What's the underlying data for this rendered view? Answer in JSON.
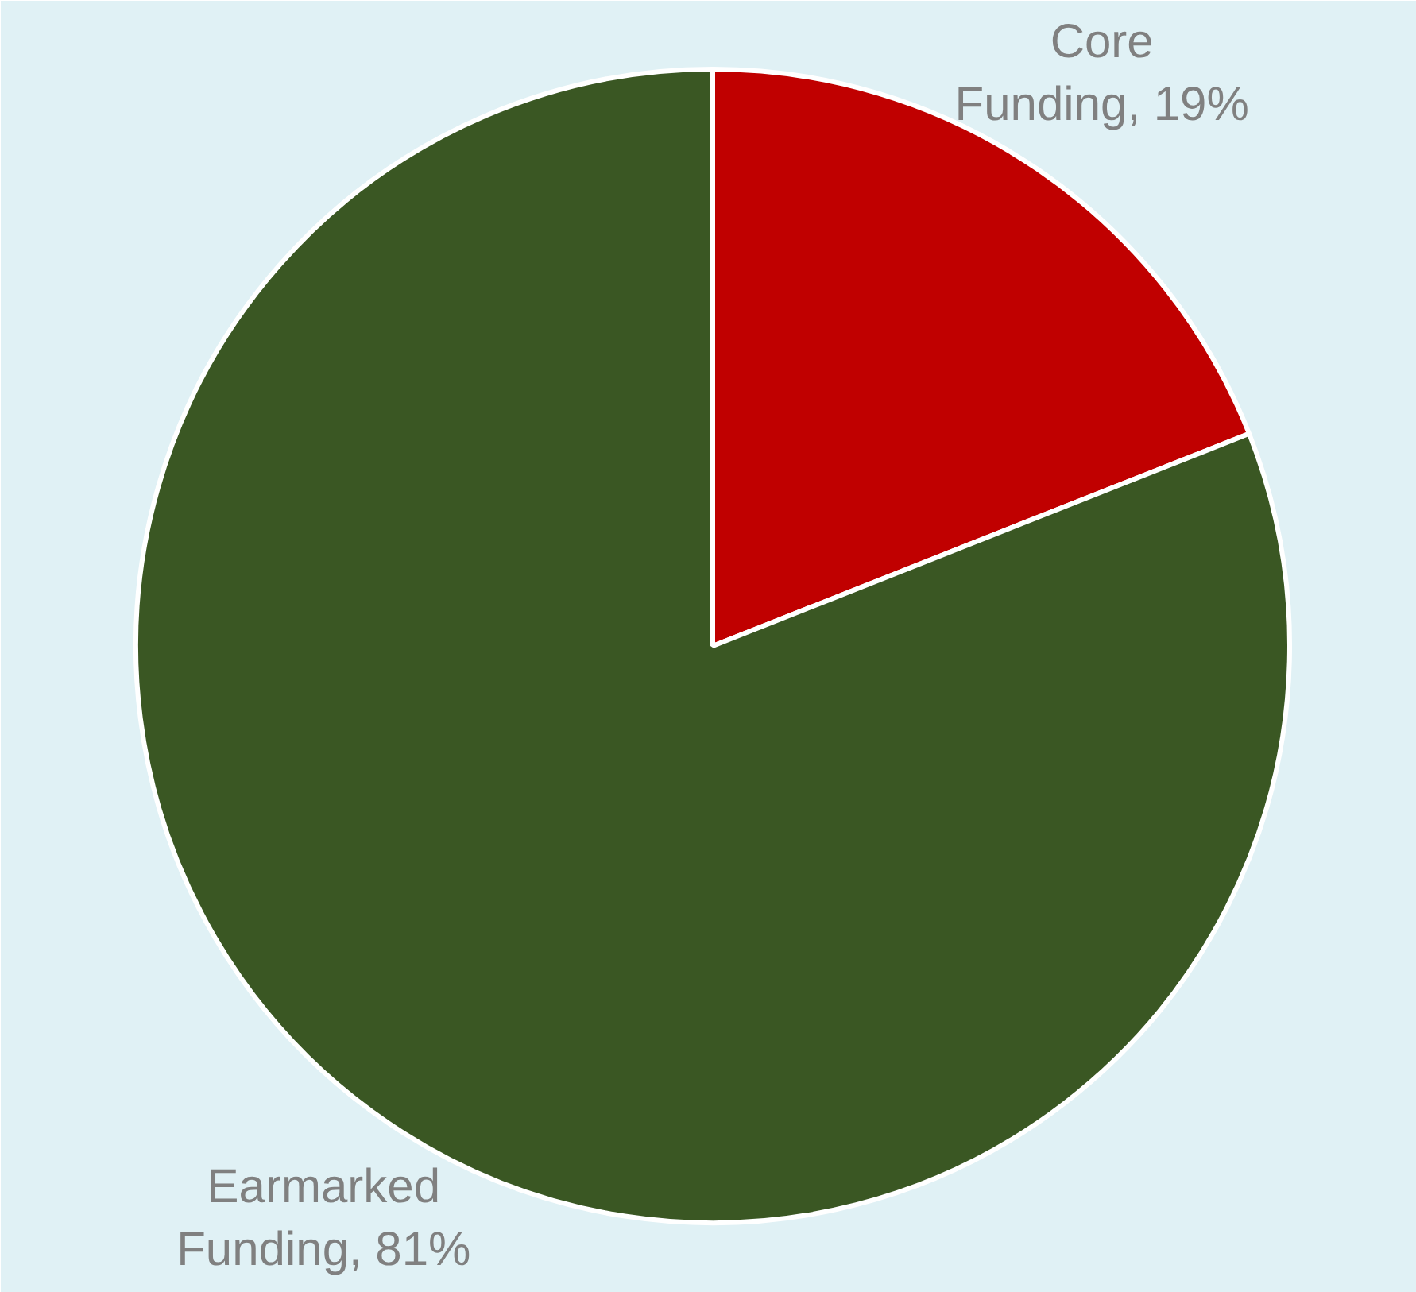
{
  "chart_data": {
    "type": "pie",
    "categories": [
      "Core Funding, 19%",
      "Earmarked Funding, 81%"
    ],
    "values": [
      19,
      81
    ],
    "colors": [
      "#c00000",
      "#3a5723"
    ]
  }
}
